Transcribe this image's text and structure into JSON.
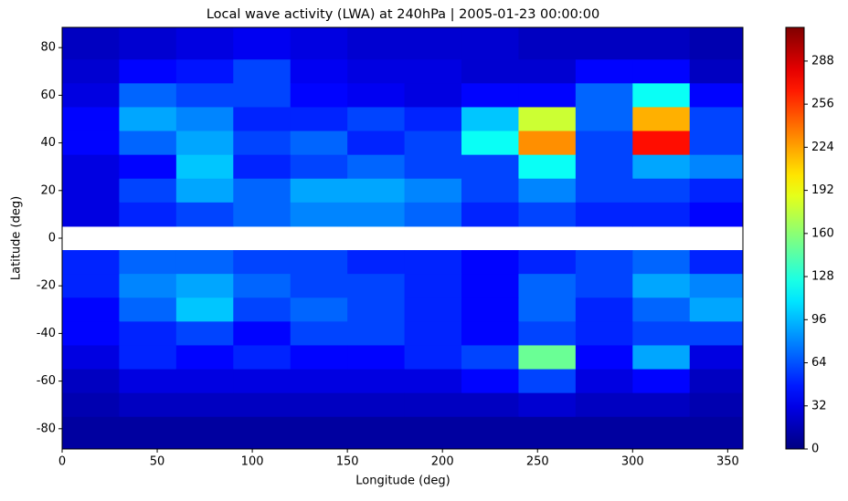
{
  "chart_data": {
    "type": "heatmap",
    "title": "Local wave activity (LWA) at 240hPa | 2005-01-23 00:00:00",
    "x_label": "Longitude (deg)",
    "y_label": "Latitude (deg)",
    "lon": [
      15,
      45,
      75,
      105,
      135,
      165,
      195,
      225,
      255,
      285,
      315,
      345
    ],
    "lat": [
      80,
      70,
      60,
      50,
      40,
      30,
      20,
      10,
      0,
      -10,
      -20,
      -30,
      -40,
      -50,
      -60,
      -70,
      -80
    ],
    "z": [
      [
        20,
        25,
        30,
        35,
        30,
        25,
        25,
        25,
        20,
        20,
        20,
        15
      ],
      [
        25,
        40,
        45,
        60,
        35,
        30,
        30,
        25,
        25,
        40,
        40,
        20
      ],
      [
        30,
        70,
        60,
        60,
        40,
        35,
        30,
        40,
        40,
        70,
        120,
        40
      ],
      [
        40,
        90,
        80,
        50,
        50,
        60,
        50,
        100,
        180,
        70,
        220,
        60
      ],
      [
        40,
        70,
        90,
        60,
        70,
        50,
        60,
        120,
        230,
        60,
        270,
        60
      ],
      [
        30,
        40,
        100,
        50,
        60,
        70,
        60,
        60,
        120,
        60,
        90,
        80
      ],
      [
        30,
        60,
        90,
        70,
        90,
        90,
        80,
        60,
        80,
        60,
        60,
        50
      ],
      [
        30,
        50,
        60,
        70,
        80,
        80,
        70,
        50,
        60,
        50,
        50,
        40
      ],
      [
        null,
        null,
        null,
        null,
        null,
        null,
        null,
        null,
        null,
        null,
        null,
        null
      ],
      [
        50,
        70,
        70,
        60,
        60,
        50,
        50,
        40,
        50,
        60,
        70,
        50
      ],
      [
        50,
        80,
        90,
        70,
        60,
        60,
        50,
        40,
        70,
        60,
        90,
        80
      ],
      [
        40,
        70,
        100,
        60,
        70,
        60,
        50,
        40,
        70,
        50,
        70,
        90
      ],
      [
        40,
        50,
        60,
        40,
        60,
        60,
        50,
        40,
        60,
        50,
        60,
        60
      ],
      [
        30,
        50,
        40,
        50,
        40,
        40,
        50,
        60,
        150,
        40,
        90,
        30
      ],
      [
        20,
        30,
        30,
        30,
        30,
        30,
        30,
        40,
        60,
        30,
        40,
        20
      ],
      [
        15,
        20,
        20,
        20,
        20,
        20,
        20,
        20,
        25,
        20,
        20,
        15
      ],
      [
        10,
        10,
        10,
        10,
        10,
        10,
        10,
        10,
        10,
        10,
        10,
        10
      ]
    ],
    "xlim": [
      0,
      358
    ],
    "ylim": [
      -88.5,
      88.5
    ],
    "xticks": [
      0,
      50,
      100,
      150,
      200,
      250,
      300,
      350
    ],
    "yticks": [
      -80,
      -60,
      -40,
      -20,
      0,
      20,
      40,
      60,
      80
    ],
    "clim": [
      0,
      313
    ],
    "cticks": [
      0,
      32,
      64,
      96,
      128,
      160,
      192,
      224,
      256,
      288
    ],
    "colormap": "jet"
  }
}
